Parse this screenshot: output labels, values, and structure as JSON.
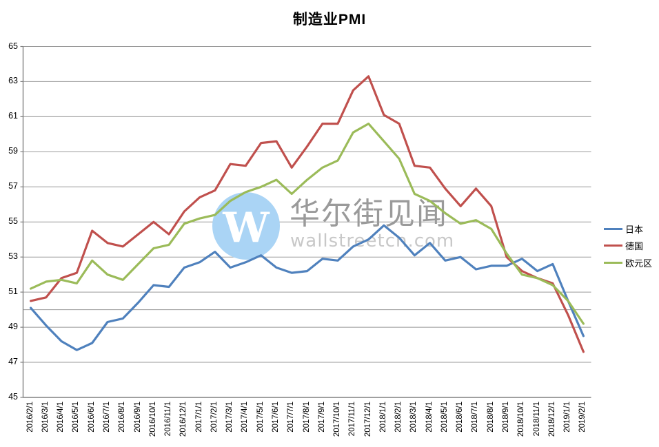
{
  "chart_data": {
    "type": "line",
    "title": "制造业PMI",
    "x": [
      "2016/2/1",
      "2016/3/1",
      "2016/4/1",
      "2016/5/1",
      "2016/6/1",
      "2016/7/1",
      "2016/8/1",
      "2016/9/1",
      "2016/10/1",
      "2016/11/1",
      "2016/12/1",
      "2017/1/1",
      "2017/2/1",
      "2017/3/1",
      "2017/4/1",
      "2017/5/1",
      "2017/6/1",
      "2017/7/1",
      "2017/8/1",
      "2017/9/1",
      "2017/10/1",
      "2017/11/1",
      "2017/12/1",
      "2018/1/1",
      "2018/2/1",
      "2018/3/1",
      "2018/4/1",
      "2018/5/1",
      "2018/6/1",
      "2018/7/1",
      "2018/8/1",
      "2018/9/1",
      "2018/10/1",
      "2018/11/1",
      "2018/12/1",
      "2019/1/1",
      "2019/2/1"
    ],
    "series": [
      {
        "name": "日本",
        "color": "#4F81BD",
        "values": [
          50.1,
          49.1,
          48.2,
          47.7,
          48.1,
          49.3,
          49.5,
          50.4,
          51.4,
          51.3,
          52.4,
          52.7,
          53.3,
          52.4,
          52.7,
          53.1,
          52.4,
          52.1,
          52.2,
          52.9,
          52.8,
          53.6,
          54.0,
          54.8,
          54.1,
          53.1,
          53.8,
          52.8,
          53.0,
          52.3,
          52.5,
          52.5,
          52.9,
          52.2,
          52.6,
          50.5,
          48.5
        ]
      },
      {
        "name": "德国",
        "color": "#C0504D",
        "values": [
          50.5,
          50.7,
          51.8,
          52.1,
          54.5,
          53.8,
          53.6,
          54.3,
          55.0,
          54.3,
          55.6,
          56.4,
          56.8,
          58.3,
          58.2,
          59.5,
          59.6,
          58.1,
          59.3,
          60.6,
          60.6,
          62.5,
          63.3,
          61.1,
          60.6,
          58.2,
          58.1,
          56.9,
          55.9,
          56.9,
          55.9,
          53.0,
          52.2,
          51.8,
          51.5,
          49.7,
          47.6
        ]
      },
      {
        "name": "欧元区",
        "color": "#9BBB59",
        "values": [
          51.2,
          51.6,
          51.7,
          51.5,
          52.8,
          52.0,
          51.7,
          52.6,
          53.5,
          53.7,
          54.9,
          55.2,
          55.4,
          56.2,
          56.7,
          57.0,
          57.4,
          56.6,
          57.4,
          58.1,
          58.5,
          60.1,
          60.6,
          59.6,
          58.6,
          56.6,
          56.2,
          55.5,
          54.9,
          55.1,
          54.6,
          53.2,
          52.0,
          51.8,
          51.4,
          50.5,
          49.2
        ]
      }
    ],
    "ylim": [
      45,
      65
    ],
    "y_ticks": [
      65,
      63,
      61,
      59,
      57,
      55,
      53,
      51,
      49,
      47,
      45
    ],
    "reference_line": 50,
    "grid": true,
    "legend_position": "right",
    "grid_color": "#999999",
    "axis_color": "#808080"
  },
  "watermark": {
    "logo_letter": "W",
    "logo_bg": "#AAD4F5",
    "cn": "华尔街见闻",
    "en": "wallstreetcn.com"
  }
}
